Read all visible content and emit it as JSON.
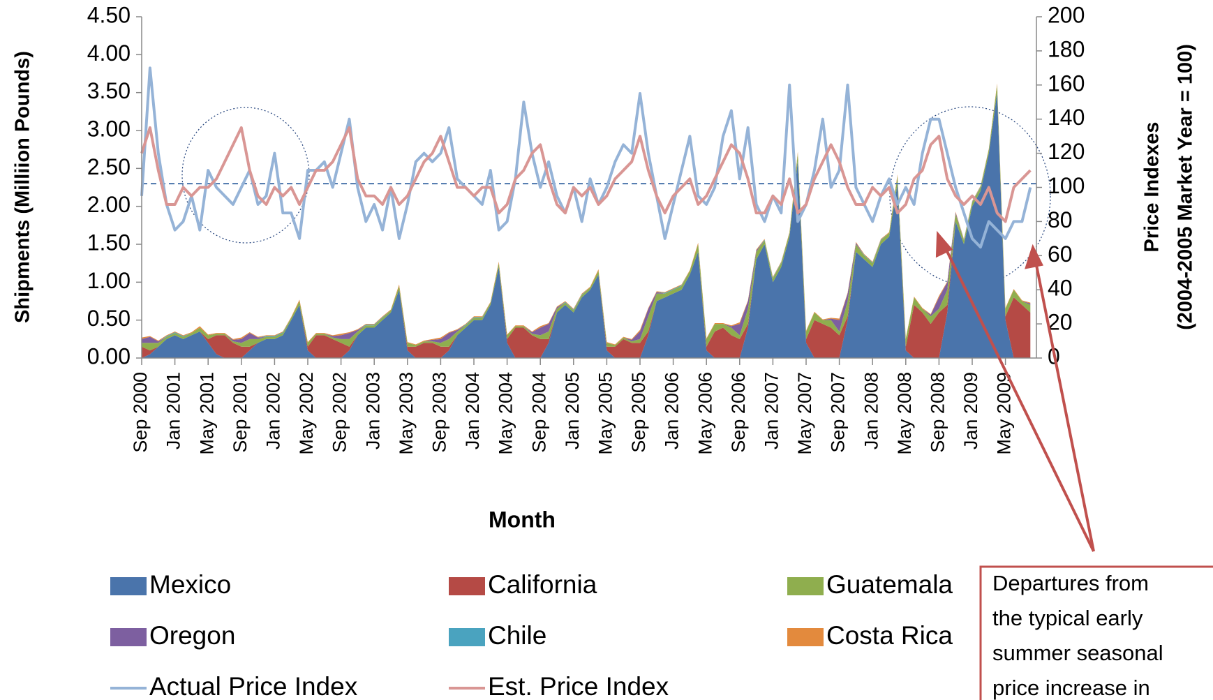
{
  "chart_data": {
    "type": "area",
    "x_label": "Month",
    "y_label": "Shipments (Milliion Pounds)",
    "y2_label": [
      "Price Indexes",
      "(2004-2005 Market Year = 100)"
    ],
    "categories": [
      "Sep 2000",
      null,
      null,
      null,
      "Jan 2001",
      null,
      null,
      null,
      "May 2001",
      null,
      null,
      null,
      "Sep 2001",
      null,
      null,
      null,
      "Jan 2002",
      null,
      null,
      null,
      "May 2002",
      null,
      null,
      null,
      "Sep 2002",
      null,
      null,
      null,
      "Jan 2003",
      null,
      null,
      null,
      "May 2003",
      null,
      null,
      null,
      "Sep 2003",
      null,
      null,
      null,
      "Jan 2004",
      null,
      null,
      null,
      "May 2004",
      null,
      null,
      null,
      "Sep 2004",
      null,
      null,
      null,
      "Jan 2005",
      null,
      null,
      null,
      "May 2005",
      null,
      null,
      null,
      "Sep 2005",
      null,
      null,
      null,
      "Jan 2006",
      null,
      null,
      null,
      "May 2006",
      null,
      null,
      null,
      "Sep 2006",
      null,
      null,
      null,
      "Jan 2007",
      null,
      null,
      null,
      "May 2007",
      null,
      null,
      null,
      "Sep 2007",
      null,
      null,
      null,
      "Jan 2008",
      null,
      null,
      null,
      "May 2008",
      null,
      null,
      null,
      "Sep 2008",
      null,
      null,
      null,
      "Jan 2009",
      null,
      null,
      null,
      "May 2009",
      null,
      null,
      null
    ],
    "ylim": [
      0,
      4.5
    ],
    "yticks": [
      {
        "value": 0,
        "label": "0.00"
      },
      {
        "value": 0.5,
        "label": "0.50"
      },
      {
        "value": 1,
        "label": "1.00"
      },
      {
        "value": 1.5,
        "label": "1.50"
      },
      {
        "value": 2,
        "label": "2.00"
      },
      {
        "value": 2.5,
        "label": "2.50"
      },
      {
        "value": 3,
        "label": "3.00"
      },
      {
        "value": 3.5,
        "label": "3.50"
      },
      {
        "value": 4,
        "label": "4.00"
      },
      {
        "value": 4.5,
        "label": "4.50"
      }
    ],
    "y2lim": [
      0,
      200
    ],
    "y2ticks": [
      0,
      20,
      40,
      60,
      80,
      100,
      120,
      140,
      160,
      180,
      200
    ],
    "reference_line": 2.3,
    "series": [
      {
        "name": "Mexico",
        "color": "#4a74ab",
        "type": "area",
        "values": [
          0,
          0.05,
          0.15,
          0.25,
          0.3,
          0.25,
          0.3,
          0.35,
          0.2,
          0.05,
          0,
          0,
          0,
          0.1,
          0.2,
          0.25,
          0.25,
          0.3,
          0.5,
          0.7,
          0.1,
          0,
          0,
          0,
          0,
          0.1,
          0.3,
          0.4,
          0.4,
          0.5,
          0.6,
          0.9,
          0.1,
          0,
          0,
          0,
          0,
          0.1,
          0.3,
          0.4,
          0.5,
          0.5,
          0.7,
          1.2,
          0.2,
          0,
          0,
          0,
          0,
          0.2,
          0.6,
          0.7,
          0.6,
          0.8,
          0.9,
          1.1,
          0.1,
          0,
          0,
          0,
          0,
          0.3,
          0.75,
          0.8,
          0.85,
          0.9,
          1.1,
          1.4,
          0.1,
          0,
          0,
          0,
          0,
          0.4,
          1.3,
          1.5,
          1.0,
          1.2,
          1.6,
          2.6,
          0.2,
          0,
          0,
          0,
          0,
          0.5,
          1.4,
          1.3,
          1.2,
          1.5,
          1.6,
          2.3,
          0.1,
          0,
          0,
          0,
          0,
          0.6,
          1.8,
          1.5,
          2.0,
          2.2,
          2.7,
          3.5,
          0.5,
          0,
          0,
          0
        ]
      },
      {
        "name": "California",
        "color": "#b54a45",
        "type": "area",
        "values": [
          0.15,
          0.05,
          0,
          0,
          0,
          0,
          0,
          0,
          0.05,
          0.25,
          0.3,
          0.2,
          0.15,
          0.05,
          0,
          0,
          0,
          0,
          0,
          0,
          0.05,
          0.3,
          0.3,
          0.25,
          0.2,
          0.05,
          0,
          0,
          0,
          0,
          0,
          0,
          0.05,
          0.15,
          0.2,
          0.2,
          0.15,
          0.05,
          0,
          0,
          0,
          0,
          0,
          0,
          0.05,
          0.4,
          0.4,
          0.3,
          0.25,
          0.05,
          0,
          0,
          0,
          0,
          0,
          0,
          0.05,
          0.15,
          0.25,
          0.2,
          0.2,
          0.05,
          0,
          0,
          0,
          0,
          0,
          0,
          0.05,
          0.35,
          0.4,
          0.3,
          0.25,
          0.05,
          0,
          0,
          0,
          0,
          0,
          0,
          0.05,
          0.5,
          0.45,
          0.4,
          0.3,
          0.05,
          0,
          0,
          0,
          0,
          0,
          0,
          0.05,
          0.7,
          0.6,
          0.45,
          0.6,
          0.1,
          0,
          0,
          0,
          0,
          0,
          0,
          0.05,
          0.8,
          0.7,
          0.6
        ]
      },
      {
        "name": "Guatemala",
        "color": "#8fae4e",
        "type": "area",
        "values": [
          0.05,
          0.1,
          0.05,
          0.03,
          0.03,
          0.03,
          0.03,
          0.05,
          0.05,
          0.02,
          0.02,
          0.02,
          0.05,
          0.1,
          0.05,
          0.03,
          0.03,
          0.03,
          0.03,
          0.05,
          0.05,
          0.02,
          0.02,
          0.02,
          0.05,
          0.1,
          0.05,
          0.03,
          0.03,
          0.03,
          0.03,
          0.05,
          0.05,
          0.02,
          0.02,
          0.02,
          0.05,
          0.1,
          0.05,
          0.03,
          0.03,
          0.03,
          0.03,
          0.05,
          0.05,
          0.02,
          0.02,
          0.02,
          0.05,
          0.1,
          0.05,
          0.03,
          0.03,
          0.03,
          0.03,
          0.05,
          0.05,
          0.02,
          0.02,
          0.02,
          0.05,
          0.2,
          0.1,
          0.05,
          0.05,
          0.05,
          0.05,
          0.1,
          0.1,
          0.1,
          0.05,
          0.1,
          0.05,
          0.2,
          0.1,
          0.05,
          0.05,
          0.05,
          0.05,
          0.1,
          0.1,
          0.1,
          0.05,
          0.1,
          0.05,
          0.2,
          0.1,
          0.05,
          0.05,
          0.05,
          0.05,
          0.1,
          0.1,
          0.1,
          0.05,
          0.1,
          0.05,
          0.2,
          0.1,
          0.05,
          0.05,
          0.05,
          0.05,
          0.1,
          0.1,
          0.1,
          0.05,
          0.1
        ]
      },
      {
        "name": "Oregon",
        "color": "#7d5fa0",
        "type": "area",
        "values": [
          0.05,
          0.08,
          0.02,
          0,
          0,
          0,
          0,
          0,
          0,
          0,
          0,
          0.02,
          0.05,
          0.08,
          0.02,
          0,
          0,
          0,
          0,
          0,
          0,
          0,
          0,
          0.02,
          0.05,
          0.08,
          0.02,
          0,
          0,
          0,
          0,
          0,
          0,
          0,
          0,
          0.02,
          0.05,
          0.08,
          0.02,
          0,
          0,
          0,
          0,
          0,
          0,
          0,
          0,
          0.02,
          0.1,
          0.1,
          0.02,
          0,
          0,
          0,
          0,
          0,
          0,
          0,
          0,
          0.02,
          0.1,
          0.1,
          0.02,
          0,
          0,
          0,
          0,
          0,
          0,
          0,
          0,
          0.02,
          0.15,
          0.1,
          0.02,
          0,
          0,
          0,
          0,
          0,
          0,
          0,
          0,
          0.02,
          0.15,
          0.1,
          0.02,
          0,
          0,
          0,
          0,
          0,
          0,
          0,
          0,
          0.02,
          0.15,
          0.1,
          0.02,
          0,
          0,
          0,
          0,
          0,
          0,
          0,
          0,
          0.02
        ]
      },
      {
        "name": "Chile",
        "color": "#4aa3bf",
        "type": "area",
        "values": [
          0,
          0,
          0,
          0.01,
          0.01,
          0.01,
          0,
          0,
          0,
          0,
          0,
          0,
          0,
          0,
          0,
          0.01,
          0.01,
          0.01,
          0,
          0,
          0,
          0,
          0,
          0,
          0,
          0,
          0,
          0.01,
          0.01,
          0.01,
          0,
          0,
          0,
          0,
          0,
          0,
          0,
          0,
          0,
          0.01,
          0.01,
          0.01,
          0,
          0,
          0,
          0,
          0,
          0,
          0,
          0,
          0,
          0.01,
          0.01,
          0.01,
          0,
          0,
          0,
          0,
          0,
          0,
          0,
          0,
          0,
          0.01,
          0.01,
          0.01,
          0,
          0,
          0,
          0,
          0,
          0,
          0,
          0,
          0,
          0.01,
          0.01,
          0.01,
          0,
          0,
          0,
          0,
          0,
          0,
          0,
          0,
          0,
          0.01,
          0.01,
          0.01,
          0,
          0,
          0,
          0,
          0,
          0,
          0,
          0,
          0,
          0.01,
          0.01,
          0.01,
          0,
          0,
          0,
          0,
          0,
          0
        ]
      },
      {
        "name": "Costa Rica",
        "color": "#e38a3d",
        "type": "area",
        "values": [
          0.02,
          0.01,
          0.01,
          0.01,
          0.01,
          0.01,
          0.01,
          0.02,
          0.01,
          0.01,
          0.01,
          0.01,
          0.02,
          0.01,
          0.01,
          0.01,
          0.01,
          0.01,
          0.01,
          0.02,
          0.01,
          0.01,
          0.01,
          0.01,
          0.02,
          0.01,
          0.01,
          0.01,
          0.01,
          0.01,
          0.01,
          0.02,
          0.01,
          0.01,
          0.01,
          0.01,
          0.02,
          0.01,
          0.01,
          0.01,
          0.01,
          0.01,
          0.01,
          0.02,
          0.01,
          0.01,
          0.01,
          0.01,
          0.02,
          0.01,
          0.01,
          0.01,
          0.01,
          0.01,
          0.01,
          0.02,
          0.01,
          0.01,
          0.01,
          0.01,
          0.02,
          0.01,
          0.01,
          0.01,
          0.01,
          0.01,
          0.01,
          0.02,
          0.01,
          0.01,
          0.01,
          0.01,
          0.02,
          0.01,
          0.01,
          0.01,
          0.01,
          0.01,
          0.01,
          0.02,
          0.01,
          0.01,
          0.01,
          0.01,
          0.02,
          0.01,
          0.01,
          0.01,
          0.01,
          0.01,
          0.01,
          0.02,
          0.01,
          0.01,
          0.01,
          0.01,
          0.02,
          0.01,
          0.01,
          0.01,
          0.01,
          0.01,
          0.01,
          0.02,
          0.01,
          0.01,
          0.01,
          0.01
        ]
      },
      {
        "name": "Actual Price Index",
        "color": "#95b3d7",
        "type": "line",
        "axis": "y2",
        "values": [
          95,
          170,
          120,
          90,
          75,
          80,
          95,
          75,
          110,
          100,
          95,
          90,
          100,
          110,
          90,
          95,
          120,
          85,
          85,
          70,
          110,
          110,
          115,
          100,
          120,
          140,
          100,
          80,
          90,
          75,
          100,
          70,
          90,
          115,
          120,
          115,
          120,
          135,
          105,
          100,
          95,
          90,
          110,
          75,
          80,
          105,
          150,
          120,
          100,
          115,
          95,
          85,
          100,
          80,
          105,
          90,
          100,
          115,
          125,
          120,
          155,
          120,
          95,
          70,
          90,
          110,
          130,
          95,
          90,
          100,
          130,
          145,
          105,
          135,
          90,
          80,
          95,
          85,
          160,
          80,
          90,
          110,
          140,
          100,
          110,
          160,
          100,
          90,
          80,
          95,
          105,
          90,
          100,
          90,
          120,
          140,
          140,
          120,
          100,
          85,
          70,
          65,
          80,
          75,
          70,
          80,
          80,
          100
        ]
      },
      {
        "name": "Est. Price Index",
        "color": "#d99694",
        "type": "line",
        "axis": "y2",
        "values": [
          120,
          135,
          110,
          90,
          90,
          100,
          95,
          100,
          100,
          105,
          115,
          125,
          135,
          110,
          95,
          90,
          100,
          95,
          100,
          90,
          100,
          110,
          110,
          115,
          125,
          135,
          105,
          95,
          95,
          90,
          100,
          90,
          95,
          105,
          115,
          120,
          130,
          115,
          100,
          100,
          95,
          100,
          100,
          85,
          90,
          105,
          110,
          120,
          125,
          105,
          90,
          85,
          100,
          95,
          100,
          90,
          95,
          105,
          110,
          115,
          130,
          110,
          95,
          85,
          95,
          100,
          105,
          90,
          95,
          105,
          115,
          125,
          120,
          105,
          85,
          85,
          95,
          90,
          105,
          85,
          90,
          105,
          115,
          125,
          115,
          100,
          90,
          90,
          100,
          95,
          100,
          85,
          90,
          105,
          110,
          125,
          130,
          105,
          95,
          90,
          95,
          90,
          100,
          85,
          80,
          100,
          105,
          110
        ]
      }
    ],
    "annotation": [
      "Departures from",
      "the typical early",
      "summer seasonal",
      "price increase in"
    ]
  }
}
